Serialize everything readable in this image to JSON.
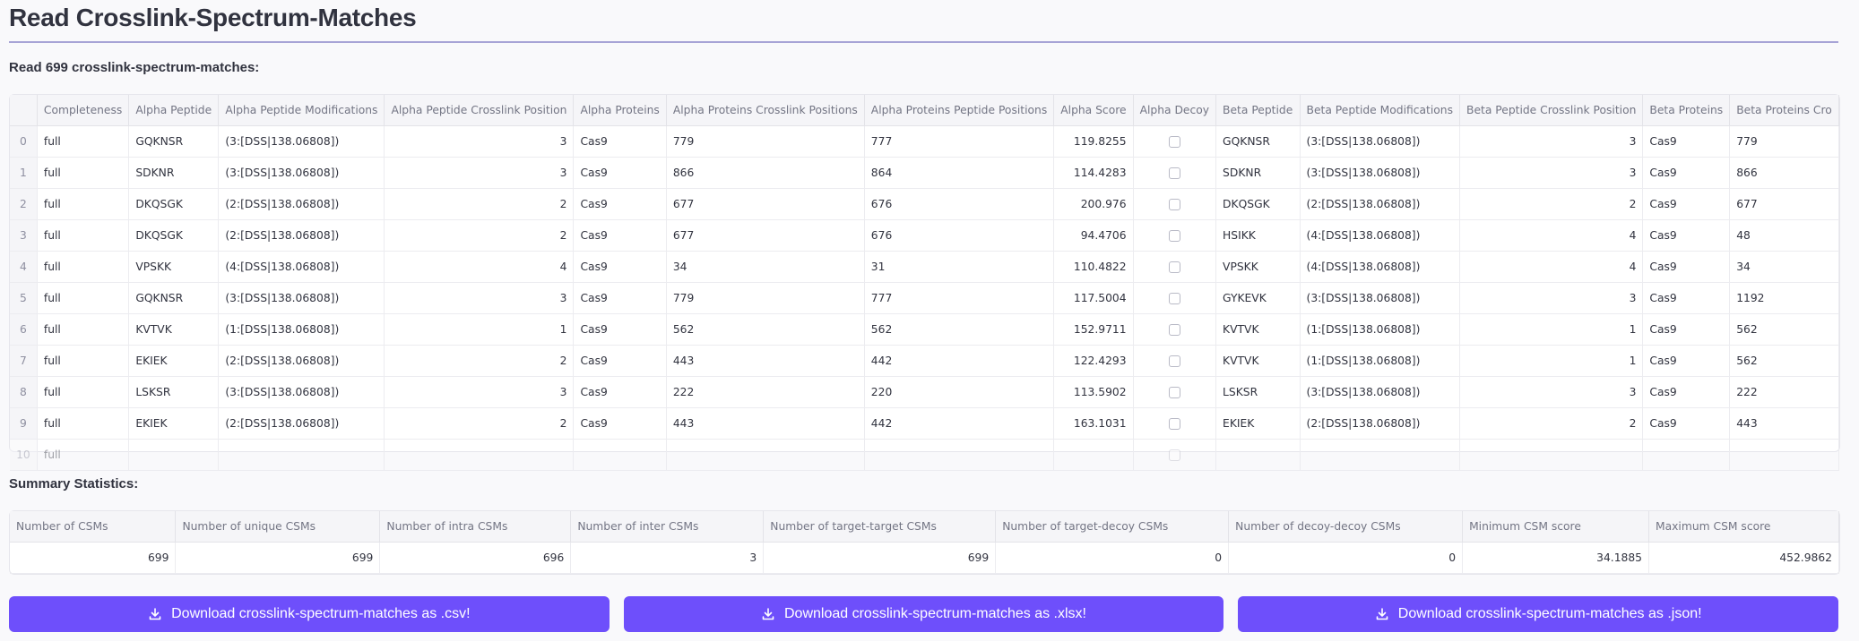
{
  "page": {
    "title": "Read Crosslink-Spectrum-Matches",
    "read_label": "Read 699 crosslink-spectrum-matches:",
    "summary_label": "Summary Statistics:"
  },
  "colors": {
    "accent": "#6e4ffb",
    "title_rule": "#a7a4d6"
  },
  "csm_table": {
    "columns": [
      "Completeness",
      "Alpha Peptide",
      "Alpha Peptide Modifications",
      "Alpha Peptide Crosslink Position",
      "Alpha Proteins",
      "Alpha Proteins Crosslink Positions",
      "Alpha Proteins Peptide Positions",
      "Alpha Score",
      "Alpha Decoy",
      "Beta Peptide",
      "Beta Peptide Modifications",
      "Beta Peptide Crosslink Position",
      "Beta Proteins",
      "Beta Proteins Cro"
    ],
    "rows": [
      {
        "index": "0",
        "cells": [
          "full",
          "GQKNSR",
          "(3:[DSS|138.06808])",
          "3",
          "Cas9",
          "779",
          "777",
          "119.8255",
          "",
          "GQKNSR",
          "(3:[DSS|138.06808])",
          "3",
          "Cas9",
          "779"
        ]
      },
      {
        "index": "1",
        "cells": [
          "full",
          "SDKNR",
          "(3:[DSS|138.06808])",
          "3",
          "Cas9",
          "866",
          "864",
          "114.4283",
          "",
          "SDKNR",
          "(3:[DSS|138.06808])",
          "3",
          "Cas9",
          "866"
        ]
      },
      {
        "index": "2",
        "cells": [
          "full",
          "DKQSGK",
          "(2:[DSS|138.06808])",
          "2",
          "Cas9",
          "677",
          "676",
          "200.976",
          "",
          "DKQSGK",
          "(2:[DSS|138.06808])",
          "2",
          "Cas9",
          "677"
        ]
      },
      {
        "index": "3",
        "cells": [
          "full",
          "DKQSGK",
          "(2:[DSS|138.06808])",
          "2",
          "Cas9",
          "677",
          "676",
          "94.4706",
          "",
          "HSIKK",
          "(4:[DSS|138.06808])",
          "4",
          "Cas9",
          "48"
        ]
      },
      {
        "index": "4",
        "cells": [
          "full",
          "VPSKK",
          "(4:[DSS|138.06808])",
          "4",
          "Cas9",
          "34",
          "31",
          "110.4822",
          "",
          "VPSKK",
          "(4:[DSS|138.06808])",
          "4",
          "Cas9",
          "34"
        ]
      },
      {
        "index": "5",
        "cells": [
          "full",
          "GQKNSR",
          "(3:[DSS|138.06808])",
          "3",
          "Cas9",
          "779",
          "777",
          "117.5004",
          "",
          "GYKEVK",
          "(3:[DSS|138.06808])",
          "3",
          "Cas9",
          "1192"
        ]
      },
      {
        "index": "6",
        "cells": [
          "full",
          "KVTVK",
          "(1:[DSS|138.06808])",
          "1",
          "Cas9",
          "562",
          "562",
          "152.9711",
          "",
          "KVTVK",
          "(1:[DSS|138.06808])",
          "1",
          "Cas9",
          "562"
        ]
      },
      {
        "index": "7",
        "cells": [
          "full",
          "EKIEK",
          "(2:[DSS|138.06808])",
          "2",
          "Cas9",
          "443",
          "442",
          "122.4293",
          "",
          "KVTVK",
          "(1:[DSS|138.06808])",
          "1",
          "Cas9",
          "562"
        ]
      },
      {
        "index": "8",
        "cells": [
          "full",
          "LSKSR",
          "(3:[DSS|138.06808])",
          "3",
          "Cas9",
          "222",
          "220",
          "113.5902",
          "",
          "LSKSR",
          "(3:[DSS|138.06808])",
          "3",
          "Cas9",
          "222"
        ]
      },
      {
        "index": "9",
        "cells": [
          "full",
          "EKIEK",
          "(2:[DSS|138.06808])",
          "2",
          "Cas9",
          "443",
          "442",
          "163.1031",
          "",
          "EKIEK",
          "(2:[DSS|138.06808])",
          "2",
          "Cas9",
          "443"
        ]
      },
      {
        "index": "10",
        "cells": [
          "full",
          "",
          "",
          "",
          "",
          "",
          "",
          "",
          "",
          "",
          "",
          "",
          "",
          ""
        ]
      }
    ]
  },
  "summary_table": {
    "columns": [
      "Number of CSMs",
      "Number of unique CSMs",
      "Number of intra CSMs",
      "Number of inter CSMs",
      "Number of target-target CSMs",
      "Number of target-decoy CSMs",
      "Number of decoy-decoy CSMs",
      "Minimum CSM score",
      "Maximum CSM score"
    ],
    "values": [
      "699",
      "699",
      "696",
      "3",
      "699",
      "0",
      "0",
      "34.1885",
      "452.9862"
    ]
  },
  "buttons": [
    {
      "label": "Download crosslink-spectrum-matches as .csv!",
      "icon": "download-icon"
    },
    {
      "label": "Download crosslink-spectrum-matches as .xlsx!",
      "icon": "download-icon"
    },
    {
      "label": "Download crosslink-spectrum-matches as .json!",
      "icon": "download-icon"
    }
  ]
}
